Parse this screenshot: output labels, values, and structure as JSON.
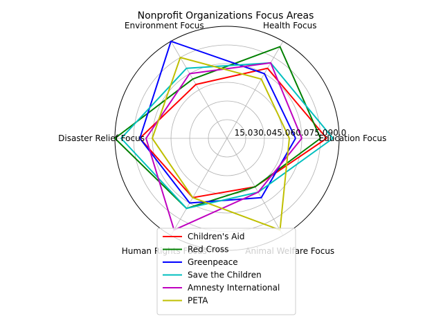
{
  "chart_data": {
    "type": "radar",
    "title": "Nonprofit Organizations Focus Areas",
    "axes": [
      "Education Focus",
      "Health Focus",
      "Environment Focus",
      "Disaster Relief Focus",
      "Human Rights Focus",
      "Animal Welfare Focus"
    ],
    "rlim": [
      0,
      90
    ],
    "rticks": [
      "15.0",
      "30.0",
      "45.0",
      "60.0",
      "75.0",
      "90.0"
    ],
    "grid": true,
    "legend_position": "bottom-center",
    "series": [
      {
        "name": "Children's Aid",
        "color": "#ff0000",
        "values": [
          80,
          65,
          50,
          70,
          55,
          45
        ]
      },
      {
        "name": "Red Cross",
        "color": "#008000",
        "values": [
          75,
          85,
          55,
          90,
          65,
          45
        ]
      },
      {
        "name": "Greenpeace",
        "color": "#0000ff",
        "values": [
          55,
          60,
          90,
          70,
          60,
          55
        ]
      },
      {
        "name": "Save the Children",
        "color": "#00bfbf",
        "values": [
          85,
          70,
          65,
          85,
          65,
          50
        ]
      },
      {
        "name": "Amnesty International",
        "color": "#bf00bf",
        "values": [
          60,
          70,
          60,
          65,
          85,
          50
        ]
      },
      {
        "name": "PETA",
        "color": "#bfbf00",
        "values": [
          50,
          55,
          75,
          60,
          55,
          85
        ]
      }
    ]
  }
}
